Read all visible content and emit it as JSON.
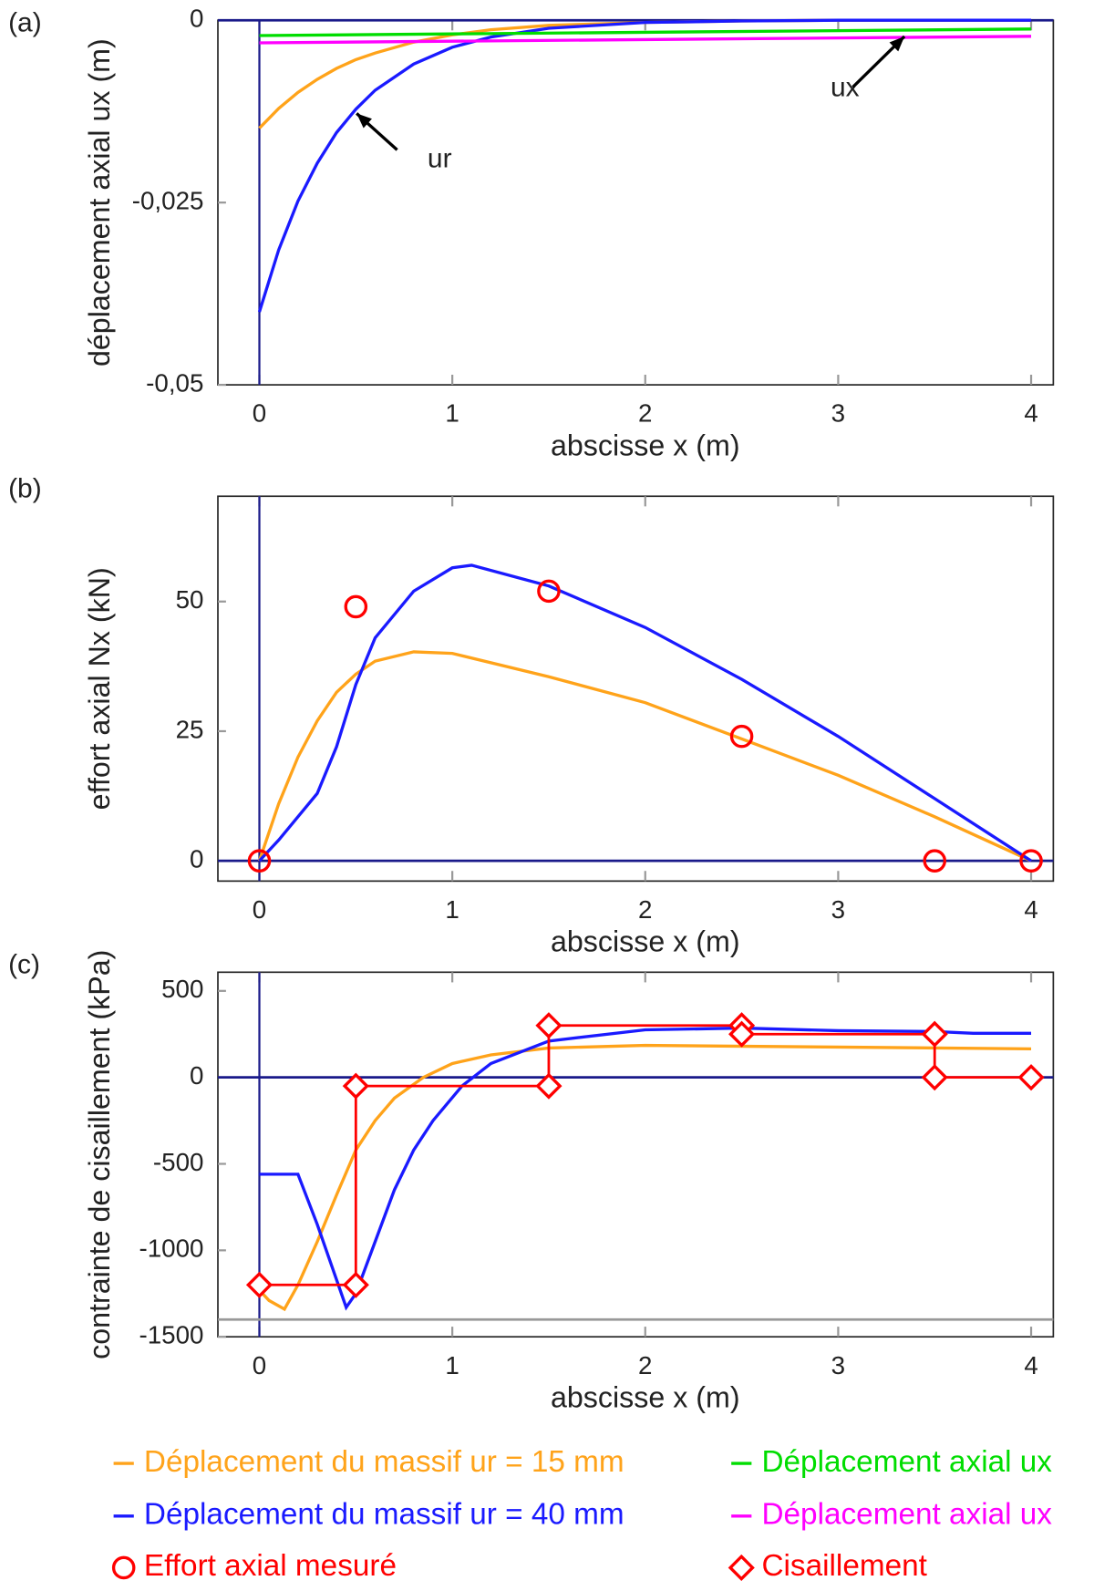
{
  "chart_data": [
    {
      "type": "line",
      "panel_label": "(a)",
      "xlabel": "abscisse x (m)",
      "ylabel": "déplacement axial ux (m)",
      "xlim": [
        -0.215,
        4.115
      ],
      "ylim": [
        -0.05,
        0
      ],
      "xticks": [
        0,
        1,
        2,
        3,
        4
      ],
      "yticks": [
        0,
        {
          "value": -0.025,
          "label": "-0,025"
        },
        {
          "value": -0.05,
          "label": "-0,05"
        }
      ],
      "annotations": [
        {
          "text": "ur"
        },
        {
          "text": "ux"
        }
      ],
      "series": [
        {
          "name": "Déplacement du massif ur = 15 mm",
          "color": "#ffa31a",
          "x": [
            0,
            0.1,
            0.2,
            0.3,
            0.4,
            0.5,
            0.6,
            0.8,
            1.0,
            1.2,
            1.5,
            2,
            2.5,
            3,
            3.5,
            4
          ],
          "values": [
            -0.0148,
            -0.0121,
            -0.0099,
            -0.0081,
            -0.0066,
            -0.0054,
            -0.0045,
            -0.003,
            -0.002,
            -0.0013,
            -0.0007,
            -0.0003,
            -0.0001,
            0,
            0,
            0
          ]
        },
        {
          "name": "Déplacement du massif ur = 40 mm",
          "color": "#1a1aff",
          "x": [
            0,
            0.1,
            0.2,
            0.3,
            0.4,
            0.5,
            0.6,
            0.8,
            1.0,
            1.2,
            1.5,
            2,
            2.5,
            3,
            3.5,
            4
          ],
          "values": [
            -0.04,
            -0.0315,
            -0.0248,
            -0.0196,
            -0.0154,
            -0.0122,
            -0.0096,
            -0.006,
            -0.0037,
            -0.0023,
            -0.0011,
            -0.0003,
            -0.0001,
            0,
            0,
            0
          ]
        },
        {
          "name": "Déplacement axial ux",
          "color": "#00dd00",
          "x": [
            0,
            4
          ],
          "values": [
            -0.0021,
            -0.0012
          ]
        },
        {
          "name": "Déplacement axial ux",
          "color": "#ff00ff",
          "x": [
            0,
            4
          ],
          "values": [
            -0.0031,
            -0.0022
          ]
        }
      ]
    },
    {
      "type": "line",
      "panel_label": "(b)",
      "xlabel": "abscisse x (m)",
      "ylabel": "effort axial Nx (kN)",
      "xlim": [
        -0.215,
        4.115
      ],
      "ylim": [
        -3.9,
        70.3
      ],
      "xticks": [
        0,
        1,
        2,
        3,
        4
      ],
      "yticks": [
        0,
        25,
        50
      ],
      "series": [
        {
          "color": "#ffa31a",
          "x": [
            0,
            0.1,
            0.2,
            0.3,
            0.4,
            0.5,
            0.6,
            0.8,
            1.0,
            1.5,
            2,
            2.5,
            3,
            3.5,
            4
          ],
          "values": [
            0,
            11,
            20,
            27,
            32.5,
            36,
            38.5,
            40.3,
            40,
            35.5,
            30.5,
            23.5,
            16.5,
            8.5,
            0
          ]
        },
        {
          "color": "#1a1aff",
          "x": [
            0,
            0.1,
            0.2,
            0.3,
            0.4,
            0.5,
            0.6,
            0.8,
            1.0,
            1.1,
            1.5,
            2,
            2.5,
            3,
            3.5,
            4
          ],
          "values": [
            0,
            4,
            8.5,
            13,
            22,
            34,
            43,
            52,
            56.5,
            57,
            53,
            45,
            35,
            24,
            12,
            0
          ]
        },
        {
          "name": "Effort axial mesuré",
          "color": "#ff0000",
          "marker": "circle",
          "line": false,
          "x": [
            0,
            0.5,
            1.5,
            2.5,
            3.5,
            4
          ],
          "values": [
            0,
            49,
            52,
            24,
            0,
            0
          ]
        }
      ]
    },
    {
      "type": "line",
      "panel_label": "(c)",
      "xlabel": "abscisse x (m)",
      "ylabel": "contrainte de cisaillement (kPa)",
      "xlim": [
        -0.215,
        4.115
      ],
      "ylim": [
        -1500,
        608
      ],
      "xticks": [
        0,
        1,
        2,
        3,
        4
      ],
      "yticks": [
        500,
        0,
        -500,
        -1000,
        -1500
      ],
      "reference_line": -1400,
      "series": [
        {
          "color": "#ffa31a",
          "x": [
            0,
            0.05,
            0.13,
            0.2,
            0.3,
            0.4,
            0.5,
            0.6,
            0.7,
            0.85,
            1.0,
            1.2,
            1.5,
            2,
            3,
            4
          ],
          "values": [
            -1230,
            -1290,
            -1340,
            -1200,
            -950,
            -680,
            -420,
            -250,
            -120,
            0,
            80,
            130,
            170,
            185,
            175,
            165
          ]
        },
        {
          "color": "#1a1aff",
          "x": [
            0,
            0.2,
            0.3,
            0.45,
            0.5,
            0.6,
            0.7,
            0.8,
            0.9,
            1.05,
            1.2,
            1.5,
            2,
            2.5,
            3,
            3.5,
            3.7,
            4
          ],
          "values": [
            -560,
            -560,
            -850,
            -1330,
            -1250,
            -950,
            -650,
            -420,
            -250,
            -50,
            80,
            210,
            275,
            285,
            270,
            265,
            255,
            255
          ]
        },
        {
          "name": "Cisaillement",
          "color": "#ff0000",
          "marker": "diamond",
          "line": true,
          "x": [
            0,
            0.5,
            0.5,
            1.5,
            1.5,
            2.5,
            2.5,
            3.5,
            3.5,
            4
          ],
          "values": [
            -1200,
            -1200,
            -50,
            -50,
            300,
            300,
            250,
            250,
            0,
            0
          ]
        }
      ]
    }
  ]
}
